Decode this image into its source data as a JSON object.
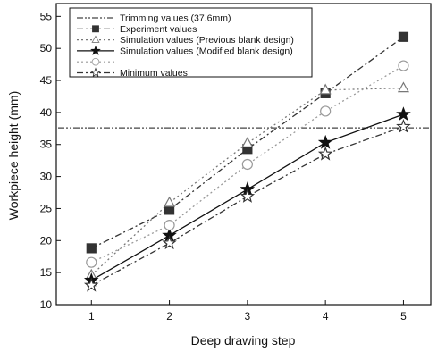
{
  "chart_data": {
    "type": "line",
    "xlabel": "Deep drawing step",
    "ylabel": "Workpiece height (mm)",
    "x": [
      1,
      2,
      3,
      4,
      5
    ],
    "xlim": [
      0.55,
      5.35
    ],
    "ylim": [
      10,
      57
    ],
    "yticks": [
      10,
      15,
      20,
      25,
      30,
      35,
      40,
      45,
      50,
      55
    ],
    "grid": false,
    "legend_position": "top-left",
    "series": [
      {
        "name": "Trimming values (37.6mm)",
        "values": [
          37.6,
          37.6,
          37.6,
          37.6,
          37.6
        ],
        "marker": "none",
        "dash": "dash-dot-dot",
        "color": "#444444",
        "full_width": true
      },
      {
        "name": "Experiment values",
        "values": [
          18.8,
          24.8,
          34.3,
          43.0,
          51.8
        ],
        "marker": "square-filled",
        "dash": "dash-dot",
        "color": "#333333"
      },
      {
        "name": "Simulation values (Previous blank design)",
        "values": [
          14.6,
          25.9,
          35.2,
          43.5,
          43.8
        ],
        "marker": "triangle-open",
        "dash": "dot",
        "color": "#777777"
      },
      {
        "name": "Simulation values (Modified blank design)",
        "values": [
          13.8,
          20.8,
          28.0,
          35.3,
          39.7
        ],
        "marker": "star-filled",
        "dash": "solid",
        "color": "#111111"
      },
      {
        "name": "",
        "values": [
          16.6,
          22.4,
          31.9,
          40.2,
          47.3
        ],
        "marker": "circle-open",
        "dash": "dot",
        "color": "#999999"
      },
      {
        "name": "Minimum values",
        "values": [
          13.0,
          19.6,
          26.9,
          33.5,
          37.8
        ],
        "marker": "star-open",
        "dash": "dash-dot",
        "color": "#333333"
      }
    ]
  }
}
